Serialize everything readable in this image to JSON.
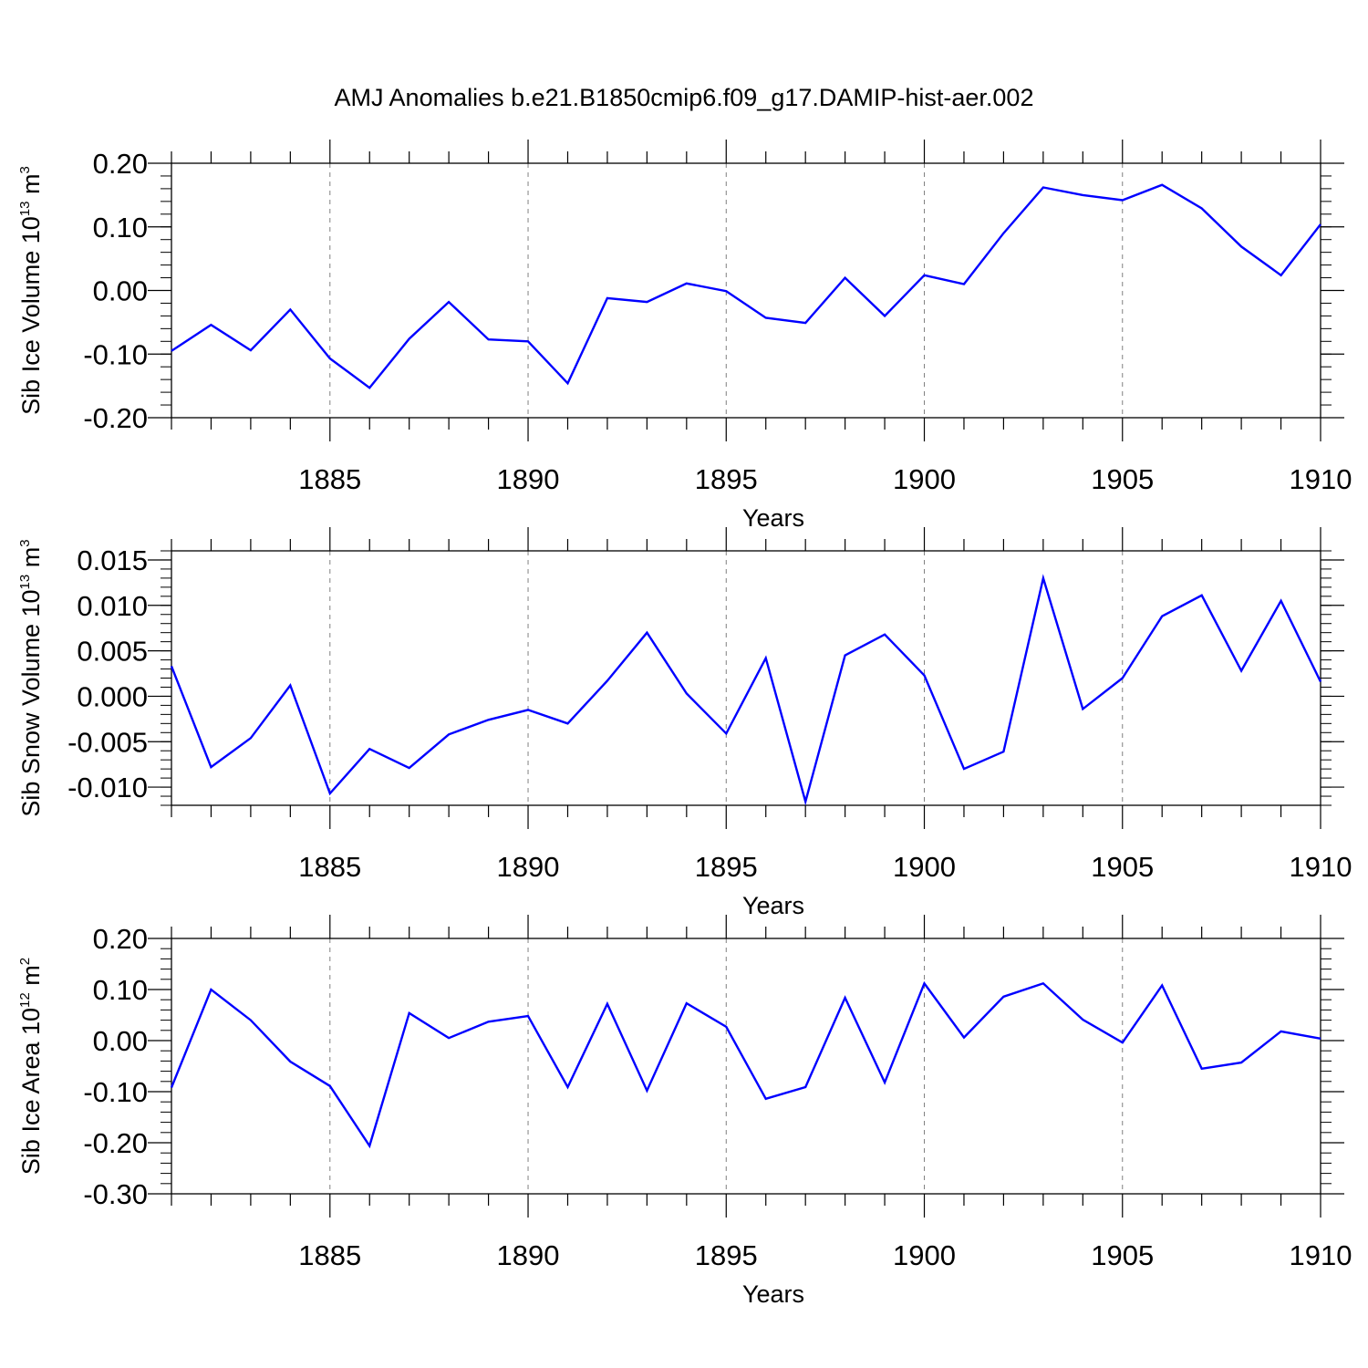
{
  "title": "AMJ Anomalies b.e21.B1850cmip6.f09_g17.DAMIP-hist-aer.002",
  "colors": {
    "line": "#0000ff",
    "axis": "#000000",
    "grid": "#808080"
  },
  "chart_data": [
    {
      "type": "line",
      "ylabel_base": "Sib Ice Volume 10",
      "ylabel_exp": "13",
      "ylabel_unit": " m",
      "ylabel_unit_exp": "3",
      "xlabel": "Years",
      "xlim": [
        1881,
        1910
      ],
      "ylim": [
        -0.2,
        0.2
      ],
      "yticks": [
        -0.2,
        -0.1,
        0.0,
        0.1,
        0.2
      ],
      "ytick_labels": [
        "-0.20",
        "-0.10",
        "0.00",
        "0.10",
        "0.20"
      ],
      "yminor_step": 0.02,
      "xticks": [
        1885,
        1890,
        1895,
        1900,
        1905,
        1910
      ],
      "xtick_labels": [
        "1885",
        "1890",
        "1895",
        "1900",
        "1905",
        "1910"
      ],
      "x": [
        1881,
        1882,
        1883,
        1884,
        1885,
        1886,
        1887,
        1888,
        1889,
        1890,
        1891,
        1892,
        1893,
        1894,
        1895,
        1896,
        1897,
        1898,
        1899,
        1900,
        1901,
        1902,
        1903,
        1904,
        1905,
        1906,
        1907,
        1908,
        1909,
        1910
      ],
      "values": [
        -0.095,
        -0.054,
        -0.094,
        -0.03,
        -0.107,
        -0.153,
        -0.076,
        -0.018,
        -0.077,
        -0.08,
        -0.146,
        -0.012,
        -0.018,
        0.011,
        -0.001,
        -0.043,
        -0.051,
        0.02,
        -0.04,
        0.024,
        0.01,
        0.09,
        0.162,
        0.15,
        0.142,
        0.166,
        0.129,
        0.069,
        0.024,
        0.104
      ]
    },
    {
      "type": "line",
      "ylabel_base": "Sib Snow Volume 10",
      "ylabel_exp": "13",
      "ylabel_unit": " m",
      "ylabel_unit_exp": "3",
      "xlabel": "Years",
      "xlim": [
        1881,
        1910
      ],
      "ylim": [
        -0.012,
        0.016
      ],
      "yticks": [
        -0.01,
        -0.005,
        0.0,
        0.005,
        0.01,
        0.015
      ],
      "ytick_labels": [
        "-0.010",
        "-0.005",
        "0.000",
        "0.005",
        "0.010",
        "0.015"
      ],
      "yminor_step": 0.001,
      "xticks": [
        1885,
        1890,
        1895,
        1900,
        1905,
        1910
      ],
      "xtick_labels": [
        "1885",
        "1890",
        "1895",
        "1900",
        "1905",
        "1910"
      ],
      "x": [
        1881,
        1882,
        1883,
        1884,
        1885,
        1886,
        1887,
        1888,
        1889,
        1890,
        1891,
        1892,
        1893,
        1894,
        1895,
        1896,
        1897,
        1898,
        1899,
        1900,
        1901,
        1902,
        1903,
        1904,
        1905,
        1906,
        1907,
        1908,
        1909,
        1910
      ],
      "values": [
        0.0033,
        -0.0078,
        -0.0046,
        0.0012,
        -0.0107,
        -0.0058,
        -0.0079,
        -0.0042,
        -0.0026,
        -0.0015,
        -0.003,
        0.0017,
        0.007,
        0.0003,
        -0.0041,
        0.0042,
        -0.0116,
        0.0045,
        0.0068,
        0.0023,
        -0.008,
        -0.0061,
        0.013,
        -0.0014,
        0.002,
        0.0088,
        0.0111,
        0.0028,
        0.0105,
        0.0016
      ]
    },
    {
      "type": "line",
      "ylabel_base": "Sib Ice Area 10",
      "ylabel_exp": "12",
      "ylabel_unit": " m",
      "ylabel_unit_exp": "2",
      "xlabel": "Years",
      "xlim": [
        1881,
        1910
      ],
      "ylim": [
        -0.3,
        0.2
      ],
      "yticks": [
        -0.3,
        -0.2,
        -0.1,
        0.0,
        0.1,
        0.2
      ],
      "ytick_labels": [
        "-0.30",
        "-0.20",
        "-0.10",
        "0.00",
        "0.10",
        "0.20"
      ],
      "yminor_step": 0.02,
      "xticks": [
        1885,
        1890,
        1895,
        1900,
        1905,
        1910
      ],
      "xtick_labels": [
        "1885",
        "1890",
        "1895",
        "1900",
        "1905",
        "1910"
      ],
      "x": [
        1881,
        1882,
        1883,
        1884,
        1885,
        1886,
        1887,
        1888,
        1889,
        1890,
        1891,
        1892,
        1893,
        1894,
        1895,
        1896,
        1897,
        1898,
        1899,
        1900,
        1901,
        1902,
        1903,
        1904,
        1905,
        1906,
        1907,
        1908,
        1909,
        1910
      ],
      "values": [
        -0.092,
        0.1,
        0.04,
        -0.041,
        -0.089,
        -0.206,
        0.054,
        0.005,
        0.037,
        0.048,
        -0.091,
        0.072,
        -0.098,
        0.073,
        0.027,
        -0.114,
        -0.091,
        0.084,
        -0.082,
        0.112,
        0.006,
        0.086,
        0.112,
        0.041,
        -0.004,
        0.108,
        -0.055,
        -0.043,
        0.018,
        0.004
      ]
    }
  ]
}
